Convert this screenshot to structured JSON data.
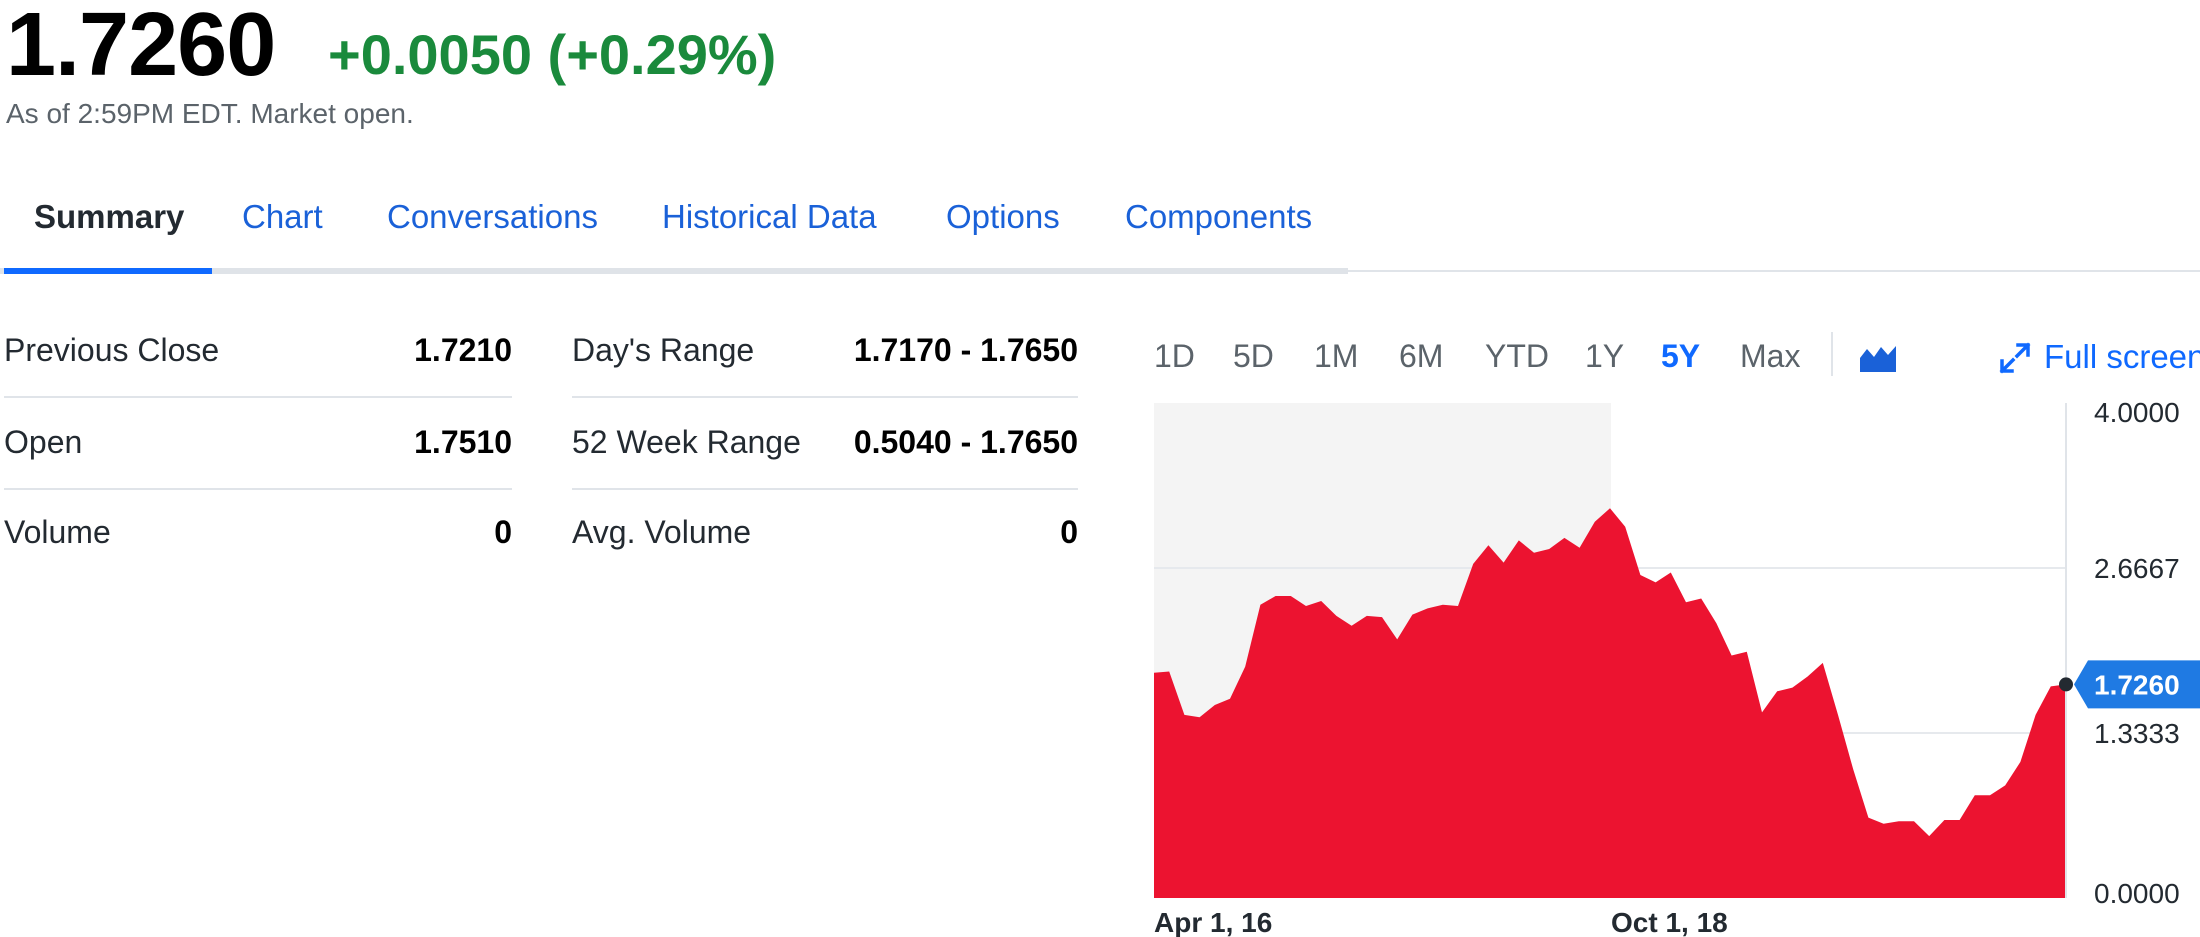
{
  "quote": {
    "price": "1.7260",
    "change": "+0.0050 (+0.29%)",
    "as_of": "As of 2:59PM EDT. Market open."
  },
  "tabs": [
    {
      "label": "Summary",
      "active": true
    },
    {
      "label": "Chart"
    },
    {
      "label": "Conversations"
    },
    {
      "label": "Historical Data"
    },
    {
      "label": "Options"
    },
    {
      "label": "Components"
    }
  ],
  "stats": {
    "left": [
      {
        "label": "Previous Close",
        "value": "1.7210"
      },
      {
        "label": "Open",
        "value": "1.7510"
      },
      {
        "label": "Volume",
        "value": "0"
      }
    ],
    "right": [
      {
        "label": "Day's Range",
        "value": "1.7170 - 1.7650"
      },
      {
        "label": "52 Week Range",
        "value": "0.5040 - 1.7650"
      },
      {
        "label": "Avg. Volume",
        "value": "0"
      }
    ]
  },
  "chart_controls": {
    "ranges": [
      "1D",
      "5D",
      "1M",
      "6M",
      "YTD",
      "1Y",
      "5Y",
      "Max"
    ],
    "selected": "5Y",
    "chart_type_icon": "mountain-chart-icon",
    "fullscreen_label": "Full screen",
    "fullscreen_icon": "expand-arrows-icon"
  },
  "colors": {
    "positive": "#1a8a3c",
    "link": "#1a61d8",
    "accent": "#0f69ff",
    "area_fill": "#ec1330",
    "shaded_region": "#f4f4f4"
  },
  "chart_data": {
    "type": "area",
    "x_tick_labels": [
      "Apr 1, 16",
      "Oct 1, 18"
    ],
    "y_tick_labels": [
      "4.0000",
      "2.6667",
      "1.3333",
      "0.0000"
    ],
    "ylim": [
      0,
      4
    ],
    "current_value_label": "1.7260",
    "current_value": 1.726,
    "grid": true,
    "shaded_region_until": "Oct 1, 18",
    "series": [
      {
        "values": [
          1.82,
          1.83,
          1.48,
          1.46,
          1.56,
          1.61,
          1.87,
          2.37,
          2.44,
          2.44,
          2.36,
          2.4,
          2.28,
          2.2,
          2.28,
          2.27,
          2.09,
          2.29,
          2.34,
          2.37,
          2.36,
          2.7,
          2.85,
          2.71,
          2.89,
          2.79,
          2.82,
          2.91,
          2.83,
          3.04,
          3.15,
          3.0,
          2.61,
          2.55,
          2.63,
          2.39,
          2.42,
          2.22,
          1.96,
          1.99,
          1.5,
          1.67,
          1.7,
          1.79,
          1.9,
          1.48,
          1.04,
          0.65,
          0.6,
          0.62,
          0.62,
          0.5,
          0.63,
          0.63,
          0.83,
          0.83,
          0.91,
          1.1,
          1.48,
          1.71,
          1.726
        ]
      }
    ]
  }
}
